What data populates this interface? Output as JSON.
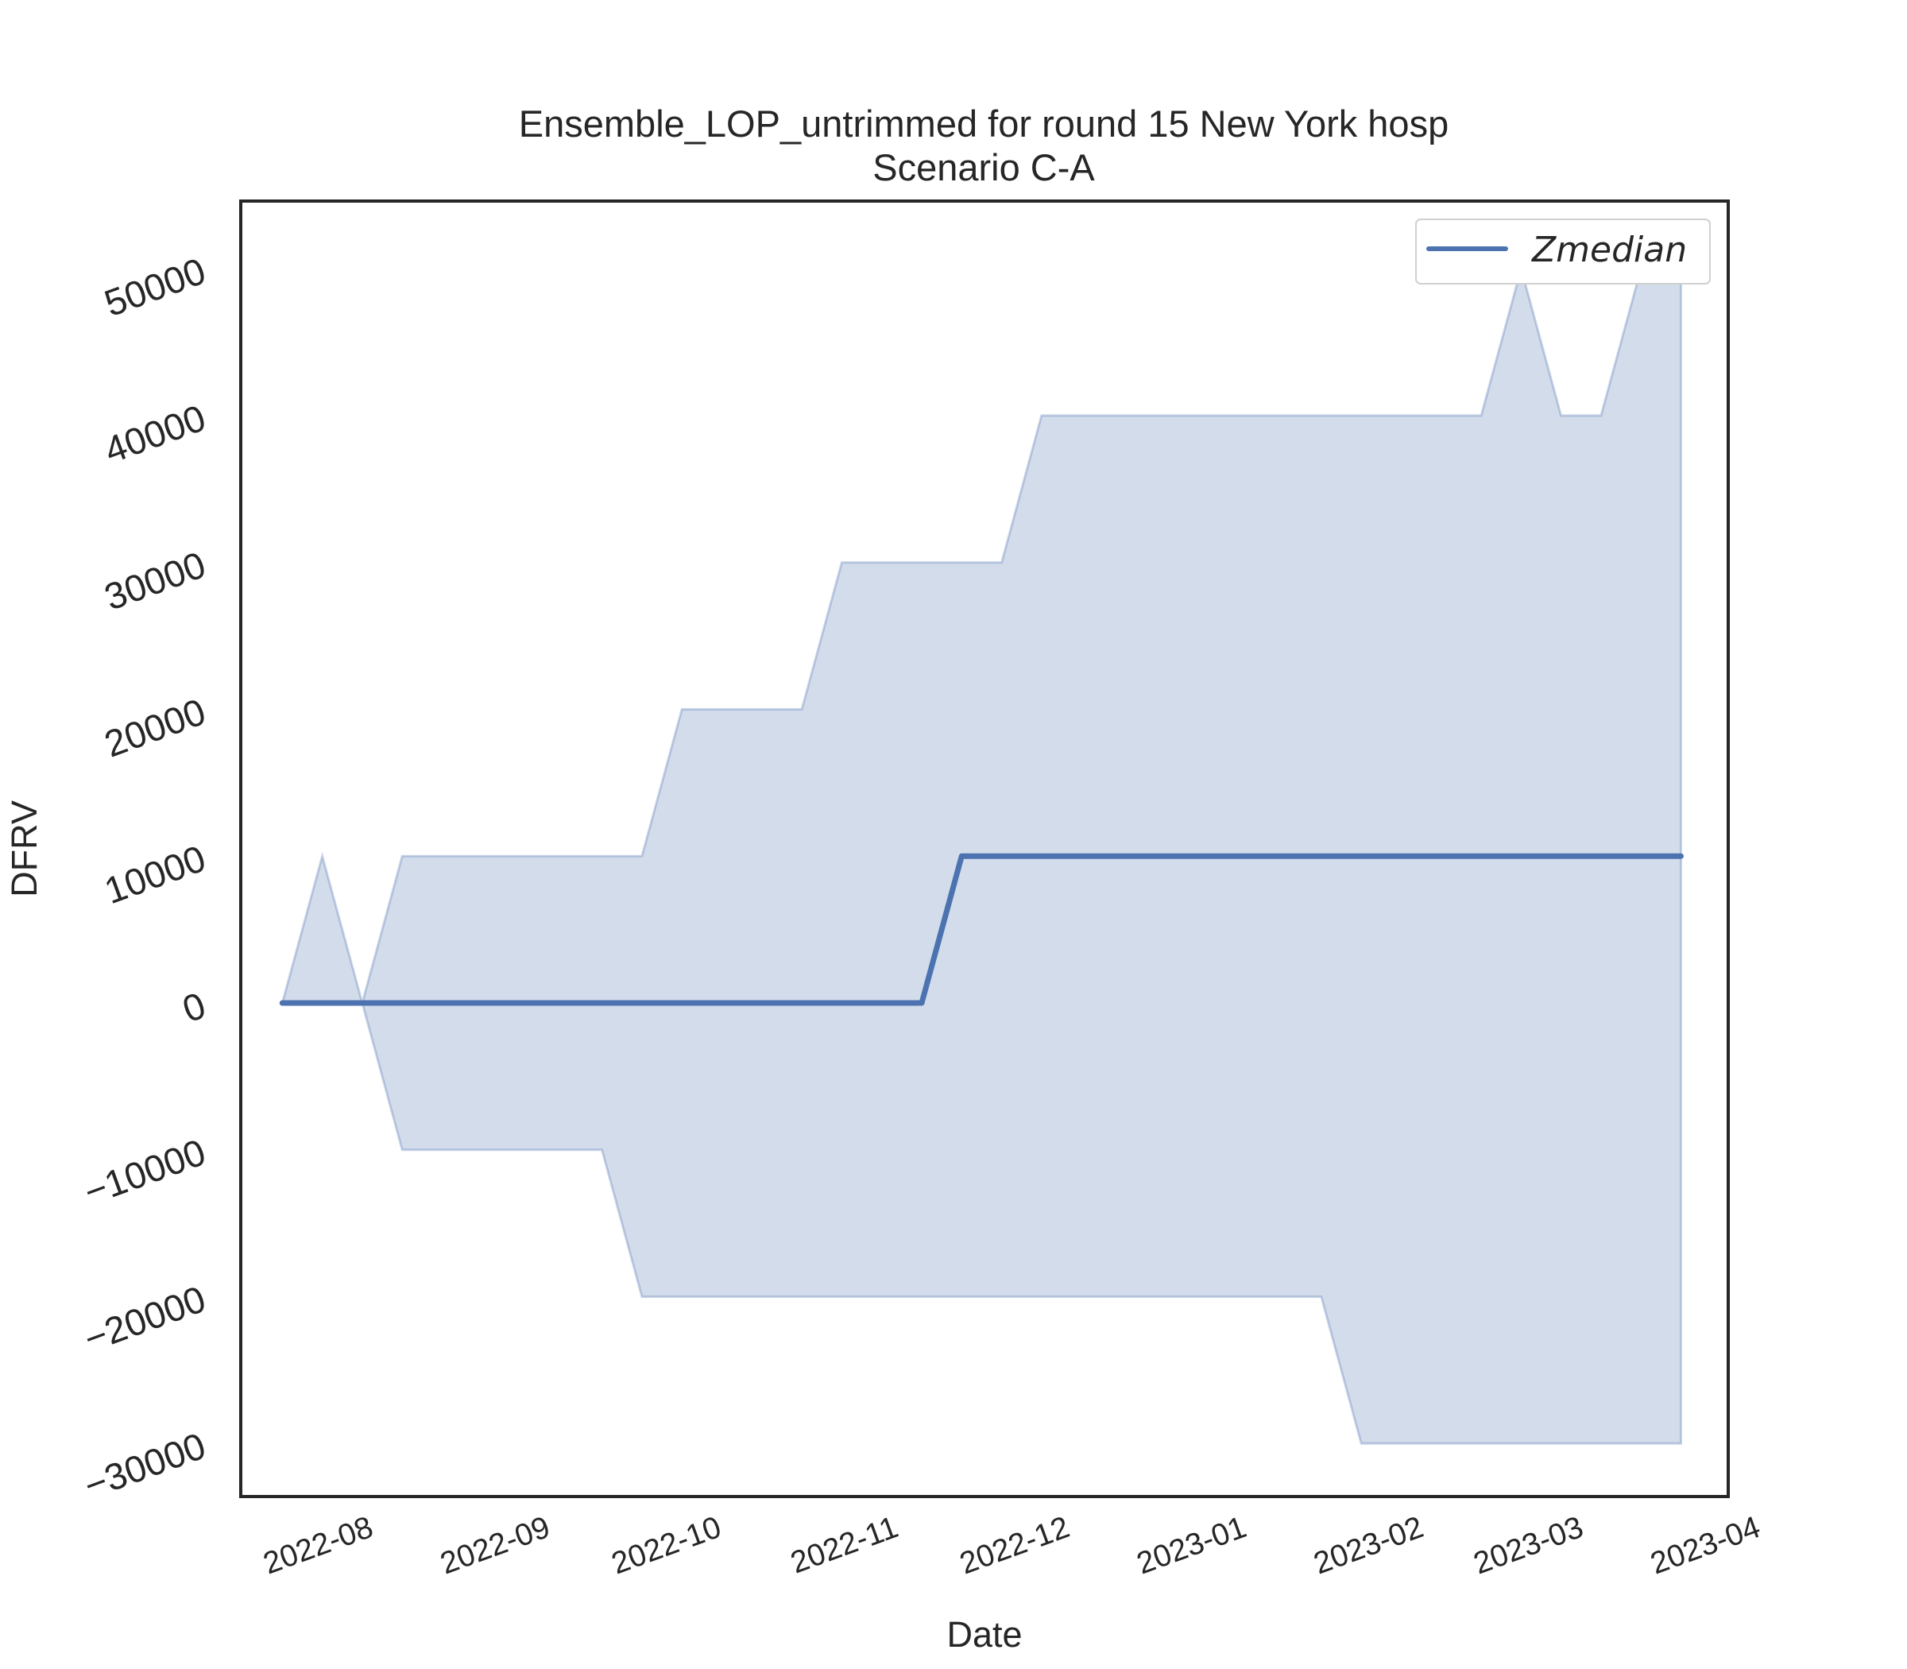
{
  "chart_data": {
    "type": "line",
    "title": "Ensemble_LOP_untrimmed for round 15 New York hosp",
    "subtitle": "Scenario C-A",
    "xlabel": "Date",
    "ylabel": "DFRV",
    "x_tick_labels": [
      "2022-08",
      "2022-09",
      "2022-10",
      "2022-11",
      "2022-12",
      "2023-01",
      "2023-02",
      "2023-03",
      "2023-04"
    ],
    "y_tick_labels": [
      "−30000",
      "−20000",
      "−10000",
      "0",
      "10000",
      "20000",
      "30000",
      "40000",
      "50000"
    ],
    "y_ticks": [
      -30000,
      -20000,
      -10000,
      0,
      10000,
      20000,
      30000,
      40000,
      50000
    ],
    "xlim": [
      "2022-07-16",
      "2023-04-02"
    ],
    "ylim": [
      -33500,
      54500
    ],
    "grid": false,
    "legend_position": "top-right",
    "legend": [
      "Zmedian"
    ],
    "colors": {
      "line": "#4c72b0",
      "band_fill": "#4c72b0",
      "frame": "#262626"
    },
    "x": [
      "2022-07-23",
      "2022-07-30",
      "2022-08-06",
      "2022-08-13",
      "2022-08-20",
      "2022-08-27",
      "2022-09-03",
      "2022-09-10",
      "2022-09-17",
      "2022-09-24",
      "2022-10-01",
      "2022-10-08",
      "2022-10-15",
      "2022-10-22",
      "2022-10-29",
      "2022-11-05",
      "2022-11-12",
      "2022-11-19",
      "2022-11-26",
      "2022-12-03",
      "2022-12-10",
      "2022-12-17",
      "2022-12-24",
      "2022-12-31",
      "2023-01-07",
      "2023-01-14",
      "2023-01-21",
      "2023-01-28",
      "2023-02-04",
      "2023-02-11",
      "2023-02-18",
      "2023-02-25",
      "2023-03-04",
      "2023-03-11",
      "2023-03-18",
      "2023-03-25"
    ],
    "series": [
      {
        "name": "Zmedian",
        "values": [
          0,
          0,
          0,
          0,
          0,
          0,
          0,
          0,
          0,
          0,
          0,
          0,
          0,
          0,
          0,
          0,
          0,
          10000,
          10000,
          10000,
          10000,
          10000,
          10000,
          10000,
          10000,
          10000,
          10000,
          10000,
          10000,
          10000,
          10000,
          10000,
          10000,
          10000,
          10000,
          10000
        ]
      }
    ],
    "band": {
      "upper": [
        0,
        10000,
        0,
        10000,
        10000,
        10000,
        10000,
        10000,
        10000,
        10000,
        20000,
        20000,
        20000,
        20000,
        30000,
        30000,
        30000,
        30000,
        30000,
        40000,
        40000,
        40000,
        40000,
        40000,
        40000,
        40000,
        40000,
        40000,
        40000,
        40000,
        40000,
        50000,
        40000,
        40000,
        50000,
        50000
      ],
      "lower": [
        0,
        0,
        0,
        -10000,
        -10000,
        -10000,
        -10000,
        -10000,
        -10000,
        -20000,
        -20000,
        -20000,
        -20000,
        -20000,
        -20000,
        -20000,
        -20000,
        -20000,
        -20000,
        -20000,
        -20000,
        -20000,
        -20000,
        -20000,
        -20000,
        -20000,
        -20000,
        -30000,
        -30000,
        -30000,
        -30000,
        -30000,
        -30000,
        -30000,
        -30000,
        -30000
      ]
    }
  }
}
